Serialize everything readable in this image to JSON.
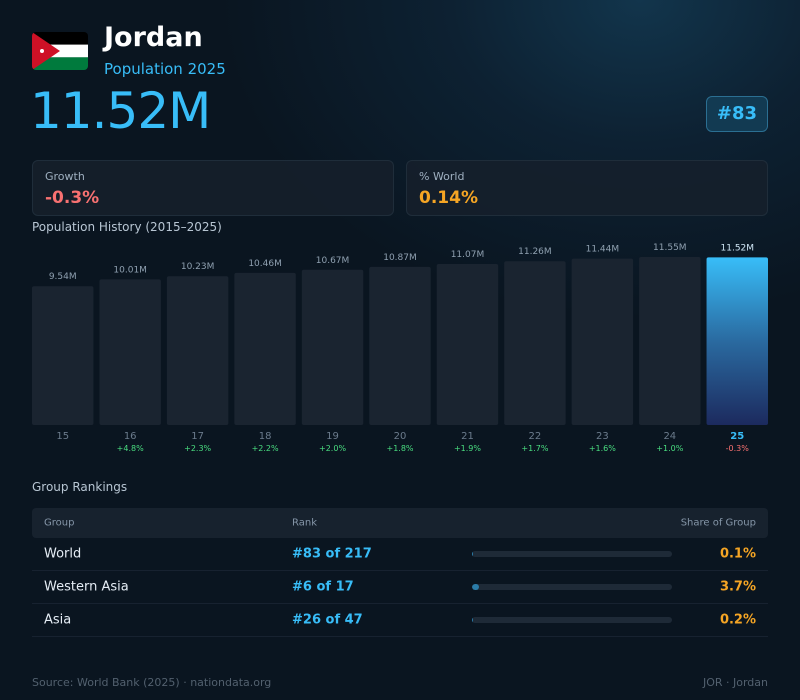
{
  "header": {
    "title": "Jordan",
    "subtitle": "Population 2025",
    "population": "11.52M",
    "rank": "#83"
  },
  "stats": [
    {
      "label": "Growth",
      "value": "-0.3%"
    },
    {
      "label": "% World",
      "value": "0.14%"
    }
  ],
  "history": {
    "title": "Population History (2015–2025)",
    "categories": [
      "15",
      "16",
      "17",
      "18",
      "19",
      "20",
      "21",
      "22",
      "23",
      "24",
      "25"
    ],
    "values": [
      9.54,
      10.01,
      10.23,
      10.46,
      10.67,
      10.87,
      11.07,
      11.26,
      11.44,
      11.55,
      11.52
    ],
    "value_labels": [
      "9.54M",
      "10.01M",
      "10.23M",
      "10.46M",
      "10.67M",
      "10.87M",
      "11.07M",
      "11.26M",
      "11.44M",
      "11.55M",
      "11.52M"
    ],
    "changes": [
      null,
      "+4.8%",
      "+2.3%",
      "+2.2%",
      "+2.0%",
      "+1.8%",
      "+1.9%",
      "+1.7%",
      "+1.6%",
      "+1.0%",
      "-0.3%"
    ]
  },
  "rankings": {
    "title": "Group Rankings",
    "columns": [
      "Group",
      "Rank",
      "Share of Group"
    ],
    "rows": [
      {
        "group": "World",
        "rank": "#83 of 217",
        "share": 0.1,
        "share_label": "0.1%"
      },
      {
        "group": "Western Asia",
        "rank": "#6 of 17",
        "share": 3.7,
        "share_label": "3.7%"
      },
      {
        "group": "Asia",
        "rank": "#26 of 47",
        "share": 0.2,
        "share_label": "0.2%"
      }
    ]
  },
  "footer": {
    "source": "Source: World Bank (2025) · nationdata.org",
    "code": "JOR · Jordan"
  }
}
